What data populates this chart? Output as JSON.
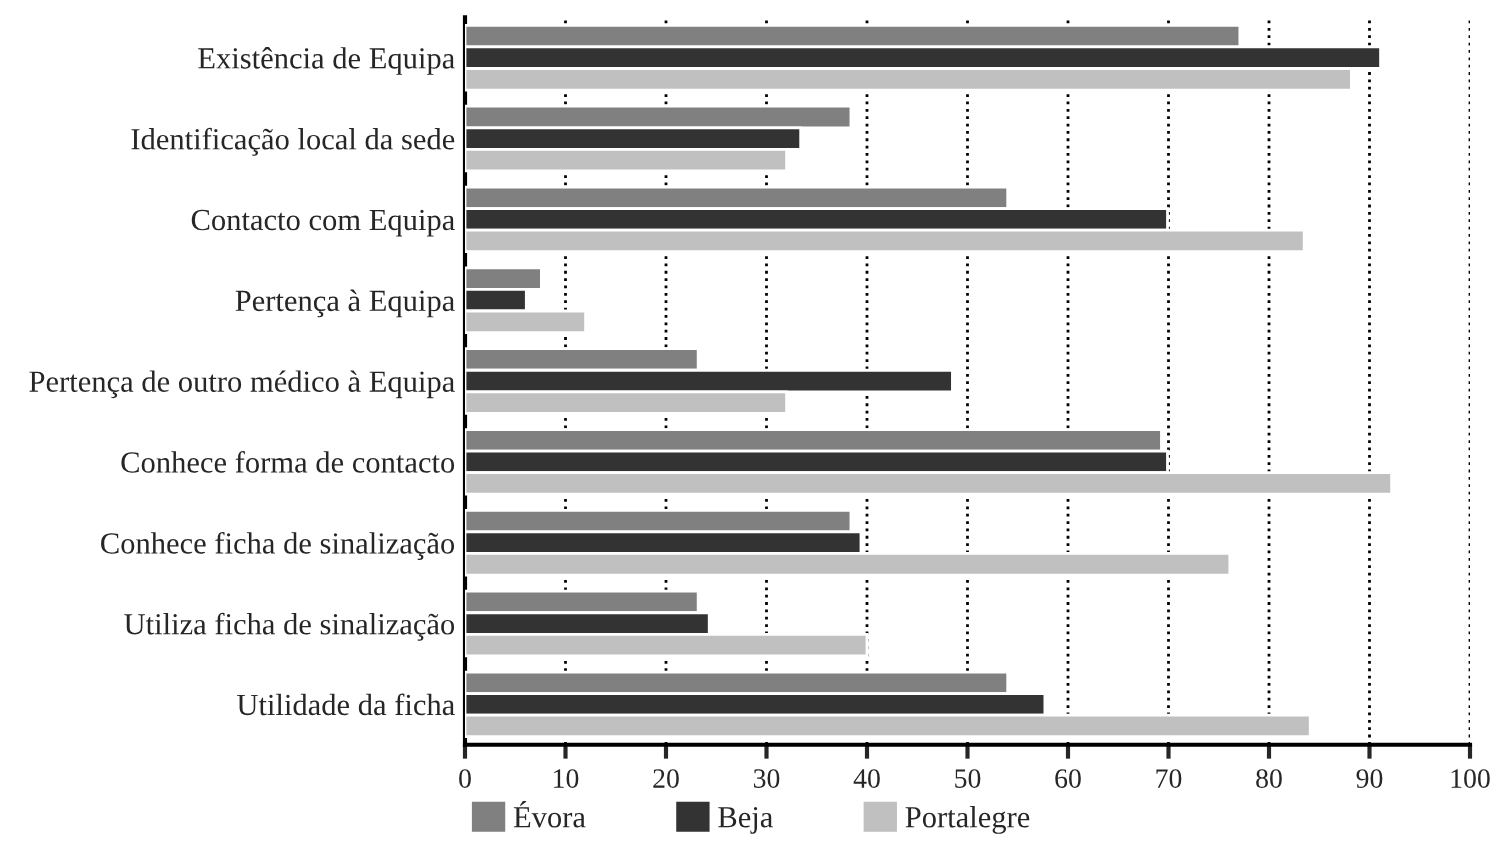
{
  "chart_data": {
    "type": "bar",
    "orientation": "horizontal",
    "categories": [
      "Existência de Equipa",
      "Identificação local da sede",
      "Contacto com Equipa",
      "Pertença à Equipa",
      "Pertença de outro médico à Equipa",
      "Conhece forma de contacto",
      "Conhece ficha de sinalização",
      "Utiliza ficha de sinalização",
      "Utilidade da ficha"
    ],
    "series": [
      {
        "name": "Évora",
        "color": "#808080",
        "values": [
          77.1,
          38.4,
          54.0,
          7.6,
          23.2,
          69.3,
          38.4,
          23.2,
          54.0
        ]
      },
      {
        "name": "Beja",
        "color": "#333333",
        "values": [
          91.1,
          33.4,
          69.9,
          6.1,
          48.5,
          69.9,
          39.4,
          24.3,
          57.7
        ]
      },
      {
        "name": "Portalegre",
        "color": "#c0c0c0",
        "values": [
          88.2,
          32.0,
          83.5,
          12.0,
          32.0,
          92.2,
          76.1,
          40.0,
          84.1
        ]
      }
    ],
    "xlim": [
      0,
      100
    ],
    "xticks": [
      0,
      10,
      20,
      30,
      40,
      50,
      60,
      70,
      80,
      90,
      100
    ],
    "grid": "x",
    "legend": "bottom"
  }
}
